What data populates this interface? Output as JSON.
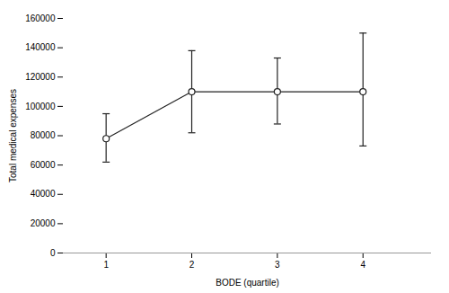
{
  "chart_data": {
    "type": "line",
    "x": [
      1,
      2,
      3,
      4
    ],
    "values": [
      78000,
      110000,
      110000,
      110000
    ],
    "lower_errors": [
      16000,
      28000,
      22000,
      37000
    ],
    "upper_errors": [
      17000,
      28000,
      23000,
      40000
    ],
    "xlabel": "BODE (quartile)",
    "ylabel": "Total medical expenses",
    "xlim": [
      0.5,
      4.8
    ],
    "ylim": [
      0,
      160000
    ],
    "xticks": [
      1,
      2,
      3,
      4
    ],
    "yticks": [
      0,
      20000,
      40000,
      60000,
      80000,
      100000,
      120000,
      140000,
      160000
    ],
    "color": "#222222",
    "marker": "circle",
    "grid": false
  }
}
